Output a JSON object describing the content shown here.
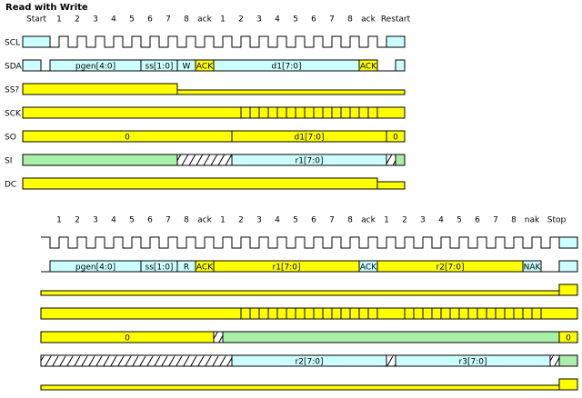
{
  "title": "Read with Write",
  "top": {
    "header": [
      "Start",
      "1",
      "2",
      "3",
      "4",
      "5",
      "6",
      "7",
      "8",
      "ack",
      "1",
      "2",
      "3",
      "4",
      "5",
      "6",
      "7",
      "8",
      "ack",
      "Restart"
    ],
    "signals": [
      "SCL",
      "SDA",
      "SS?",
      "SCK",
      "SO",
      "SI",
      "DC"
    ],
    "sda": [
      "pgen[4:0]",
      "ss[1:0]",
      "W",
      "ACK",
      "d1[7:0]",
      "ACK"
    ],
    "so": [
      "0",
      "d1[7:0]",
      "0"
    ],
    "si": [
      "r1[7:0]"
    ]
  },
  "bottom": {
    "header": [
      "1",
      "2",
      "3",
      "4",
      "5",
      "6",
      "7",
      "8",
      "ack",
      "1",
      "2",
      "3",
      "4",
      "5",
      "6",
      "7",
      "8",
      "ack",
      "1",
      "2",
      "3",
      "4",
      "5",
      "6",
      "7",
      "8",
      "nak",
      "Stop"
    ],
    "sda": [
      "pgen[4:0]",
      "ss[1:0]",
      "R",
      "ACK",
      "r1[7:0]",
      "ACK",
      "r2[7:0]",
      "NAK"
    ],
    "so": [
      "0",
      "0"
    ],
    "si": [
      "r2[7:0]",
      "r3[7:0]"
    ]
  }
}
